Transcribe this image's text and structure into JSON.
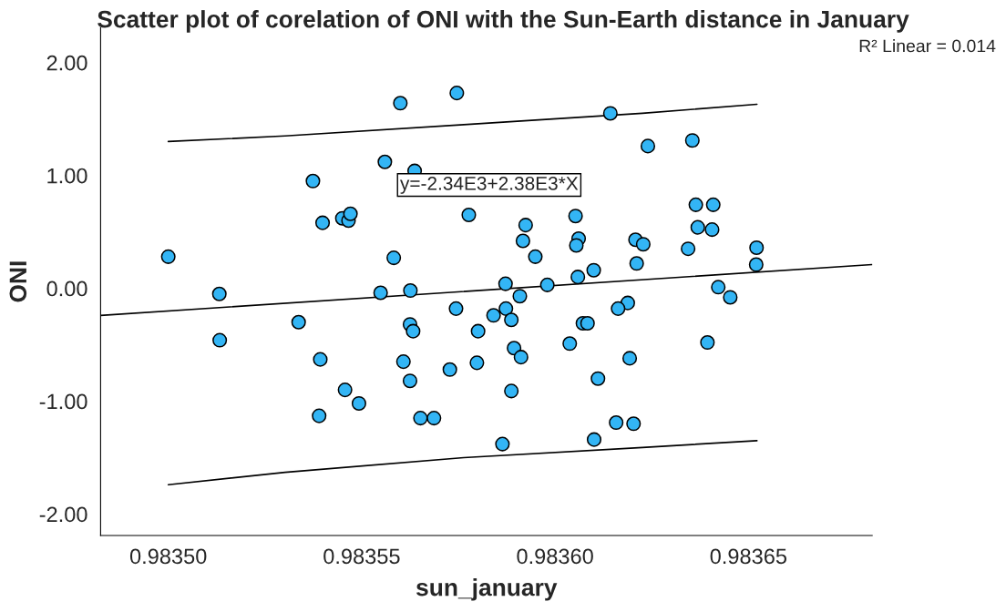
{
  "chart_data": {
    "type": "scatter",
    "title": "Scatter plot of corelation of ONI with the Sun-Earth distance in January",
    "xlabel": "sun_january",
    "ylabel": "ONI",
    "annotations": [
      "R² Linear = 0.014",
      "y=-2.34E3+2.38E3*X"
    ],
    "xlim": [
      0.9834825,
      0.983682
    ],
    "ylim": [
      -2.19,
      2.31
    ],
    "xticks": [
      {
        "value": 0.9835,
        "label": "0.98350"
      },
      {
        "value": 0.98355,
        "label": "0.98355"
      },
      {
        "value": 0.9836,
        "label": "0.98360"
      },
      {
        "value": 0.98365,
        "label": "0.98365"
      }
    ],
    "yticks": [
      {
        "value": -2,
        "label": "-2.00"
      },
      {
        "value": -1,
        "label": "-1.00"
      },
      {
        "value": 0,
        "label": "0.00"
      },
      {
        "value": 1,
        "label": "1.00"
      },
      {
        "value": 2,
        "label": "2.00"
      }
    ],
    "grid": false,
    "marker": "circle",
    "series": [
      {
        "color": "#33b5f5",
        "x": [
          0.9835,
          0.9835132,
          0.9835133,
          0.9835337,
          0.9835374,
          0.9835399,
          0.9835393,
          0.983539,
          0.983545,
          0.9835466,
          0.9835471,
          0.9835457,
          0.9835493,
          0.983556,
          0.98356,
          0.9835583,
          0.9835549,
          0.9835626,
          0.9835746,
          0.9835637,
          0.9835777,
          0.9835924,
          0.9835917,
          0.9835949,
          0.9836053,
          0.9836061,
          0.9836055,
          0.98361,
          0.9836059,
          0.9836143,
          0.9835872,
          0.983598,
          0.9835909,
          0.983624,
          0.9836355,
          0.9836364,
          0.9836409,
          0.9836369,
          0.9836406,
          0.9836208,
          0.9836228,
          0.9836344,
          0.9836521,
          0.9836211,
          0.983652,
          0.9836422,
          0.9836453,
          0.9836188,
          0.9835744,
          0.9835625,
          0.9835633,
          0.9835801,
          0.9835841,
          0.9835873,
          0.9835887,
          0.9835608,
          0.9835728,
          0.9835798,
          0.9835894,
          0.9835912,
          0.9835625,
          0.9835887,
          0.9835652,
          0.9835687,
          0.9835864,
          0.9836072,
          0.9836084,
          0.9836038,
          0.9836163,
          0.9836111,
          0.9836158,
          0.9836101,
          0.9836394,
          0.9836193,
          0.9836203
        ],
        "values": [
          0.28,
          -0.05,
          -0.46,
          -0.3,
          0.95,
          0.58,
          -0.63,
          -1.13,
          0.62,
          0.6,
          0.66,
          -0.9,
          -1.02,
          1.12,
          1.64,
          0.27,
          -0.04,
          -0.02,
          1.73,
          1.04,
          0.65,
          0.56,
          0.42,
          0.28,
          0.64,
          0.44,
          0.38,
          0.16,
          0.1,
          1.55,
          0.04,
          0.03,
          -0.07,
          1.26,
          1.31,
          0.74,
          0.74,
          0.54,
          0.52,
          0.43,
          0.39,
          0.35,
          0.36,
          0.22,
          0.21,
          0.01,
          -0.08,
          -0.13,
          -0.18,
          -0.32,
          -0.38,
          -0.38,
          -0.24,
          -0.18,
          -0.28,
          -0.65,
          -0.72,
          -0.66,
          -0.53,
          -0.61,
          -0.82,
          -0.91,
          -1.15,
          -1.15,
          -1.38,
          -0.31,
          -0.31,
          -0.49,
          -0.18,
          -0.8,
          -1.19,
          -1.34,
          -0.48,
          -0.62,
          -1.2
        ]
      },
      {
        "type": "line",
        "marker": "none",
        "color": "#000000",
        "x": [
          0.9834825,
          0.983682
        ],
        "values": [
          -0.24,
          0.21
        ]
      },
      {
        "type": "line",
        "marker": "none",
        "color": "#000000",
        "x": [
          0.9835,
          0.9835302,
          0.9835764,
          0.9836226,
          0.9836522
        ],
        "values": [
          1.3,
          1.35,
          1.45,
          1.55,
          1.63
        ]
      },
      {
        "type": "line",
        "marker": "none",
        "color": "#000000",
        "x": [
          0.9835,
          0.9835302,
          0.9835764,
          0.9836226,
          0.9836522
        ],
        "values": [
          -1.74,
          -1.63,
          -1.5,
          -1.41,
          -1.35
        ]
      }
    ]
  }
}
